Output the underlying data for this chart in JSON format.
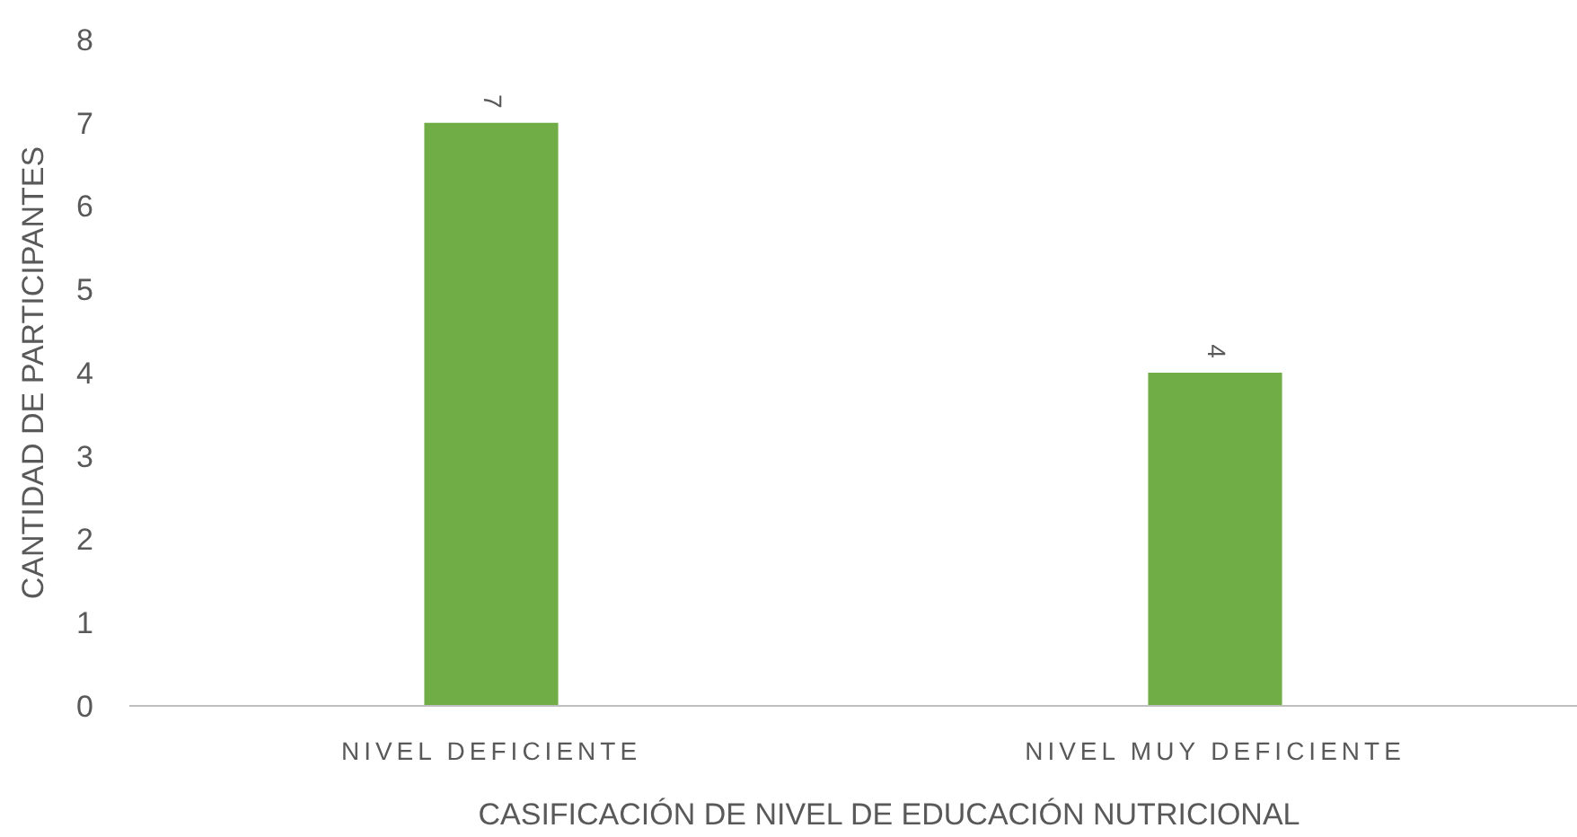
{
  "chart_data": {
    "type": "bar",
    "xlabel": "CASIFICACIÓN DE NIVEL DE EDUCACIÓN NUTRICIONAL",
    "ylabel": "CANTIDAD DE PARTICIPANTES",
    "categories": [
      "NIVEL DEFICIENTE",
      "NIVEL MUY DEFICIENTE"
    ],
    "values": [
      7,
      4
    ],
    "color": "#70ad47",
    "ylim": [
      0,
      8
    ],
    "yticks": [
      0,
      1,
      2,
      3,
      4,
      5,
      6,
      7,
      8
    ],
    "grid": false,
    "data_labels": true
  }
}
